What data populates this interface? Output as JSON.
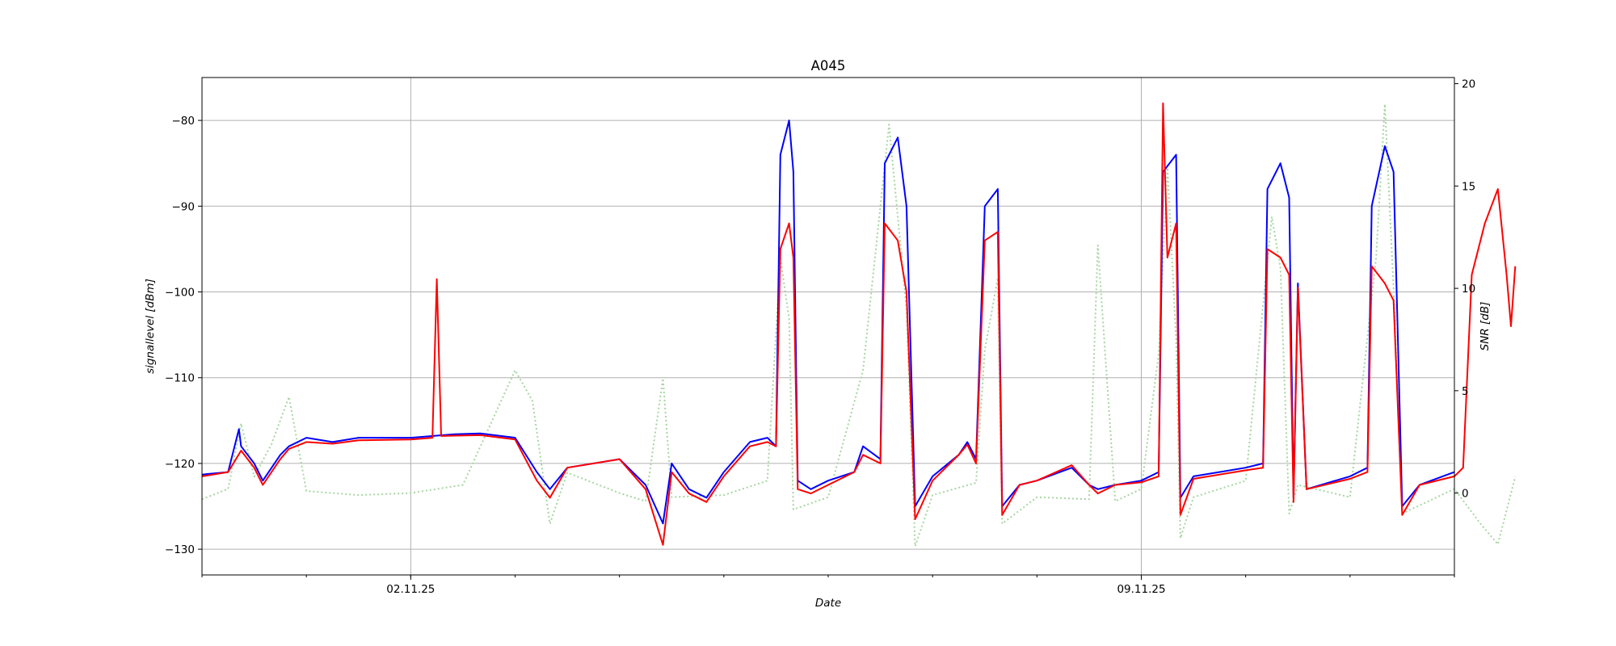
{
  "chart_data": {
    "type": "line",
    "title": "A045",
    "xlabel": "Date",
    "ylabel_left": "signallevel [dBm]",
    "ylabel_right": "SNR [dB]",
    "grid": true,
    "x_date_range": [
      "2025-10-31T00:00",
      "2025-11-12T00:00"
    ],
    "x_major_ticks": [
      {
        "label": "02.11.25",
        "date": "2025-11-02T00:00"
      },
      {
        "label": "09.11.25",
        "date": "2025-11-09T00:00"
      }
    ],
    "y_left": {
      "lim": [
        -133,
        -75
      ],
      "ticks": [
        -80,
        -90,
        -100,
        -110,
        -120,
        -130
      ]
    },
    "y_right": {
      "lim": [
        -4,
        20.3
      ],
      "ticks": [
        0,
        5,
        10,
        15,
        20
      ]
    },
    "series": [
      {
        "axis": "left",
        "color": "#0000ff",
        "points": [
          [
            "2025-10-31T00:00",
            -121.3
          ],
          [
            "2025-10-31T06:00",
            -121.0
          ],
          [
            "2025-10-31T08:30",
            -116
          ],
          [
            "2025-10-31T09:00",
            -118
          ],
          [
            "2025-10-31T12:00",
            -120
          ],
          [
            "2025-10-31T14:00",
            -122
          ],
          [
            "2025-10-31T18:00",
            -119
          ],
          [
            "2025-10-31T20:00",
            -118
          ],
          [
            "2025-11-01T00:00",
            -117
          ],
          [
            "2025-11-01T06:00",
            -117.5
          ],
          [
            "2025-11-01T12:00",
            -117
          ],
          [
            "2025-11-02T00:00",
            -117
          ],
          [
            "2025-11-02T10:00",
            -116.6
          ],
          [
            "2025-11-02T16:00",
            -116.5
          ],
          [
            "2025-11-03T00:00",
            -117
          ],
          [
            "2025-11-03T05:00",
            -121
          ],
          [
            "2025-11-03T08:00",
            -123
          ],
          [
            "2025-11-03T12:00",
            -120.5
          ],
          [
            "2025-11-04T00:00",
            -119.5
          ],
          [
            "2025-11-04T06:00",
            -122.5
          ],
          [
            "2025-11-04T10:00",
            -127
          ],
          [
            "2025-11-04T12:00",
            -120
          ],
          [
            "2025-11-04T16:00",
            -123
          ],
          [
            "2025-11-04T20:00",
            -124
          ],
          [
            "2025-11-05T00:00",
            -121
          ],
          [
            "2025-11-05T06:00",
            -117.5
          ],
          [
            "2025-11-05T10:00",
            -117
          ],
          [
            "2025-11-05T12:00",
            -118
          ],
          [
            "2025-11-05T13:00",
            -84
          ],
          [
            "2025-11-05T15:00",
            -80
          ],
          [
            "2025-11-05T16:00",
            -86
          ],
          [
            "2025-11-05T17:00",
            -122
          ],
          [
            "2025-11-05T20:00",
            -123
          ],
          [
            "2025-11-06T00:00",
            -122
          ],
          [
            "2025-11-06T06:00",
            -121
          ],
          [
            "2025-11-06T08:00",
            -118
          ],
          [
            "2025-11-06T12:00",
            -119.5
          ],
          [
            "2025-11-06T13:00",
            -85
          ],
          [
            "2025-11-06T16:00",
            -82
          ],
          [
            "2025-11-06T18:00",
            -90
          ],
          [
            "2025-11-06T20:00",
            -125
          ],
          [
            "2025-11-07T00:00",
            -121.5
          ],
          [
            "2025-11-07T06:00",
            -119
          ],
          [
            "2025-11-07T08:00",
            -117.5
          ],
          [
            "2025-11-07T10:00",
            -119.5
          ],
          [
            "2025-11-07T12:00",
            -90
          ],
          [
            "2025-11-07T15:00",
            -88
          ],
          [
            "2025-11-07T16:00",
            -125
          ],
          [
            "2025-11-07T20:00",
            -122.5
          ],
          [
            "2025-11-08T00:00",
            -122
          ],
          [
            "2025-11-08T08:00",
            -120.5
          ],
          [
            "2025-11-08T12:00",
            -122.5
          ],
          [
            "2025-11-08T14:00",
            -123
          ],
          [
            "2025-11-08T18:00",
            -122.5
          ],
          [
            "2025-11-09T00:00",
            -122
          ],
          [
            "2025-11-09T04:00",
            -121
          ],
          [
            "2025-11-09T05:00",
            -86
          ],
          [
            "2025-11-09T08:00",
            -84
          ],
          [
            "2025-11-09T09:00",
            -124
          ],
          [
            "2025-11-09T12:00",
            -121.5
          ],
          [
            "2025-11-10T00:00",
            -120.5
          ],
          [
            "2025-11-10T04:00",
            -120
          ],
          [
            "2025-11-10T05:00",
            -88
          ],
          [
            "2025-11-10T08:00",
            -85
          ],
          [
            "2025-11-10T10:00",
            -89
          ],
          [
            "2025-11-10T11:00",
            -124
          ],
          [
            "2025-11-10T12:00",
            -99
          ],
          [
            "2025-11-10T14:00",
            -123
          ],
          [
            "2025-11-11T00:00",
            -121.5
          ],
          [
            "2025-11-11T04:00",
            -120.5
          ],
          [
            "2025-11-11T05:00",
            -90
          ],
          [
            "2025-11-11T08:00",
            -83
          ],
          [
            "2025-11-11T10:00",
            -86
          ],
          [
            "2025-11-11T12:00",
            -125
          ],
          [
            "2025-11-11T16:00",
            -122.5
          ],
          [
            "2025-11-12T00:00",
            -121
          ]
        ]
      },
      {
        "axis": "left",
        "color": "#ff0000",
        "points": [
          [
            "2025-10-31T00:00",
            -121.5
          ],
          [
            "2025-10-31T06:00",
            -121
          ],
          [
            "2025-10-31T09:00",
            -118.5
          ],
          [
            "2025-10-31T12:00",
            -120.5
          ],
          [
            "2025-10-31T14:00",
            -122.5
          ],
          [
            "2025-10-31T18:00",
            -119.5
          ],
          [
            "2025-10-31T20:00",
            -118.3
          ],
          [
            "2025-11-01T00:00",
            -117.5
          ],
          [
            "2025-11-01T06:00",
            -117.7
          ],
          [
            "2025-11-01T12:00",
            -117.3
          ],
          [
            "2025-11-02T00:00",
            -117.2
          ],
          [
            "2025-11-02T05:00",
            -117
          ],
          [
            "2025-11-02T06:00",
            -98.5
          ],
          [
            "2025-11-02T07:00",
            -116.8
          ],
          [
            "2025-11-02T16:00",
            -116.7
          ],
          [
            "2025-11-03T00:00",
            -117.2
          ],
          [
            "2025-11-03T05:00",
            -122
          ],
          [
            "2025-11-03T08:00",
            -124
          ],
          [
            "2025-11-03T12:00",
            -120.5
          ],
          [
            "2025-11-04T00:00",
            -119.5
          ],
          [
            "2025-11-04T06:00",
            -123
          ],
          [
            "2025-11-04T10:00",
            -129.5
          ],
          [
            "2025-11-04T12:00",
            -121
          ],
          [
            "2025-11-04T16:00",
            -123.5
          ],
          [
            "2025-11-04T20:00",
            -124.5
          ],
          [
            "2025-11-05T00:00",
            -121.5
          ],
          [
            "2025-11-05T06:00",
            -118
          ],
          [
            "2025-11-05T10:00",
            -117.5
          ],
          [
            "2025-11-05T12:00",
            -118
          ],
          [
            "2025-11-05T13:00",
            -95
          ],
          [
            "2025-11-05T15:00",
            -92
          ],
          [
            "2025-11-05T16:00",
            -96
          ],
          [
            "2025-11-05T17:00",
            -123
          ],
          [
            "2025-11-05T20:00",
            -123.5
          ],
          [
            "2025-11-06T00:00",
            -122.5
          ],
          [
            "2025-11-06T06:00",
            -121
          ],
          [
            "2025-11-06T08:00",
            -119
          ],
          [
            "2025-11-06T12:00",
            -120
          ],
          [
            "2025-11-06T13:00",
            -92
          ],
          [
            "2025-11-06T16:00",
            -94
          ],
          [
            "2025-11-06T18:00",
            -100
          ],
          [
            "2025-11-06T20:00",
            -126.5
          ],
          [
            "2025-11-07T00:00",
            -122
          ],
          [
            "2025-11-07T06:00",
            -119
          ],
          [
            "2025-11-07T08:00",
            -117.8
          ],
          [
            "2025-11-07T10:00",
            -120
          ],
          [
            "2025-11-07T12:00",
            -94
          ],
          [
            "2025-11-07T15:00",
            -93
          ],
          [
            "2025-11-07T16:00",
            -126
          ],
          [
            "2025-11-07T20:00",
            -122.5
          ],
          [
            "2025-11-08T00:00",
            -122
          ],
          [
            "2025-11-08T08:00",
            -120.2
          ],
          [
            "2025-11-08T12:00",
            -122.5
          ],
          [
            "2025-11-08T14:00",
            -123.5
          ],
          [
            "2025-11-08T18:00",
            -122.5
          ],
          [
            "2025-11-09T00:00",
            -122.2
          ],
          [
            "2025-11-09T04:00",
            -121.5
          ],
          [
            "2025-11-09T05:00",
            -78
          ],
          [
            "2025-11-09T06:00",
            -96
          ],
          [
            "2025-11-09T08:00",
            -92
          ],
          [
            "2025-11-09T09:00",
            -126
          ],
          [
            "2025-11-09T12:00",
            -121.8
          ],
          [
            "2025-11-10T00:00",
            -120.8
          ],
          [
            "2025-11-10T04:00",
            -120.5
          ],
          [
            "2025-11-10T05:00",
            -95
          ],
          [
            "2025-11-10T08:00",
            -96
          ],
          [
            "2025-11-10T10:00",
            -98
          ],
          [
            "2025-11-10T11:00",
            -124.5
          ],
          [
            "2025-11-10T12:00",
            -99.5
          ],
          [
            "2025-11-10T14:00",
            -123
          ],
          [
            "2025-11-11T00:00",
            -121.8
          ],
          [
            "2025-11-11T04:00",
            -121
          ],
          [
            "2025-11-11T05:00",
            -97
          ],
          [
            "2025-11-11T08:00",
            -99
          ],
          [
            "2025-11-11T10:00",
            -101
          ],
          [
            "2025-11-11T12:00",
            -126
          ],
          [
            "2025-11-11T16:00",
            -122.5
          ],
          [
            "2025-11-12T00:00",
            -121.5
          ],
          [
            "2025-11-12T02:00",
            -120.5
          ],
          [
            "2025-11-12T04:00",
            -98
          ],
          [
            "2025-11-12T07:00",
            -92
          ],
          [
            "2025-11-12T10:00",
            -88
          ],
          [
            "2025-11-12T12:00",
            -98
          ],
          [
            "2025-11-12T13:00",
            -104
          ],
          [
            "2025-11-12T14:00",
            -97
          ]
        ]
      },
      {
        "axis": "right",
        "color": "#a6d6a0",
        "style": "dotted",
        "points": [
          [
            "2025-10-31T00:00",
            -0.3
          ],
          [
            "2025-10-31T06:00",
            0.2
          ],
          [
            "2025-10-31T09:00",
            3.4
          ],
          [
            "2025-10-31T12:00",
            0.8
          ],
          [
            "2025-10-31T16:00",
            2.4
          ],
          [
            "2025-10-31T20:00",
            4.7
          ],
          [
            "2025-11-01T00:00",
            0.1
          ],
          [
            "2025-11-01T12:00",
            -0.1
          ],
          [
            "2025-11-02T00:00",
            0
          ],
          [
            "2025-11-02T12:00",
            0.4
          ],
          [
            "2025-11-03T00:00",
            6.0
          ],
          [
            "2025-11-03T04:00",
            4.5
          ],
          [
            "2025-11-03T08:00",
            -1.5
          ],
          [
            "2025-11-03T12:00",
            1.0
          ],
          [
            "2025-11-04T00:00",
            0
          ],
          [
            "2025-11-04T06:00",
            -0.4
          ],
          [
            "2025-11-04T10:00",
            5.6
          ],
          [
            "2025-11-04T12:00",
            -0.2
          ],
          [
            "2025-11-05T00:00",
            -0.1
          ],
          [
            "2025-11-05T10:00",
            0.6
          ],
          [
            "2025-11-05T13:00",
            11.5
          ],
          [
            "2025-11-05T15:00",
            8.5
          ],
          [
            "2025-11-05T16:00",
            -0.8
          ],
          [
            "2025-11-06T00:00",
            -0.2
          ],
          [
            "2025-11-06T08:00",
            6.0
          ],
          [
            "2025-11-06T14:00",
            18.0
          ],
          [
            "2025-11-06T18:00",
            9.0
          ],
          [
            "2025-11-06T20:00",
            -2.6
          ],
          [
            "2025-11-07T00:00",
            -0.1
          ],
          [
            "2025-11-07T10:00",
            0.5
          ],
          [
            "2025-11-07T12:00",
            7.0
          ],
          [
            "2025-11-07T15:00",
            10.5
          ],
          [
            "2025-11-07T16:00",
            -1.5
          ],
          [
            "2025-11-08T00:00",
            -0.2
          ],
          [
            "2025-11-08T12:00",
            -0.3
          ],
          [
            "2025-11-08T14:00",
            12.1
          ],
          [
            "2025-11-08T18:00",
            -0.4
          ],
          [
            "2025-11-09T00:00",
            0.2
          ],
          [
            "2025-11-09T04:00",
            6.8
          ],
          [
            "2025-11-09T06:00",
            16.0
          ],
          [
            "2025-11-09T08:00",
            7.5
          ],
          [
            "2025-11-09T09:00",
            -2.2
          ],
          [
            "2025-11-09T12:00",
            -0.2
          ],
          [
            "2025-11-10T00:00",
            0.6
          ],
          [
            "2025-11-10T06:00",
            13.5
          ],
          [
            "2025-11-10T08:00",
            11.0
          ],
          [
            "2025-11-10T10:00",
            -1.0
          ],
          [
            "2025-11-10T12:00",
            0.4
          ],
          [
            "2025-11-11T00:00",
            -0.2
          ],
          [
            "2025-11-11T06:00",
            11.5
          ],
          [
            "2025-11-11T08:00",
            19.0
          ],
          [
            "2025-11-11T10:00",
            10.0
          ],
          [
            "2025-11-11T12:00",
            -1.0
          ],
          [
            "2025-11-12T00:00",
            0.2
          ],
          [
            "2025-11-12T06:00",
            -1.5
          ],
          [
            "2025-11-12T10:00",
            -2.5
          ],
          [
            "2025-11-12T14:00",
            0.8
          ]
        ]
      }
    ]
  }
}
